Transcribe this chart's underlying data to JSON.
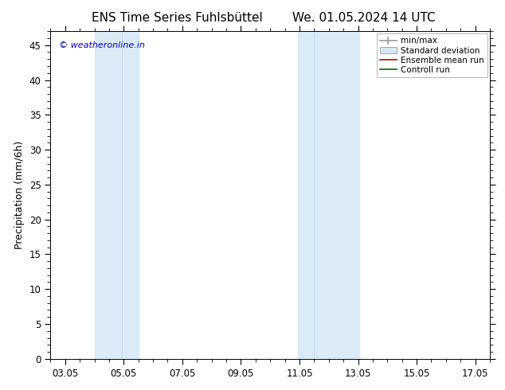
{
  "title_left": "ENS Time Series Fuhlsbüttel",
  "title_right": "We. 01.05.2024 14 UTC",
  "ylabel": "Precipitation (mm/6h)",
  "watermark": "© weatheronline.in",
  "watermark_color": "#0000cc",
  "background_color": "#ffffff",
  "plot_bg_color": "#ffffff",
  "xlim_start": 2.5,
  "xlim_end": 17.5,
  "ylim_min": 0,
  "ylim_max": 47,
  "yticks": [
    0,
    5,
    10,
    15,
    20,
    25,
    30,
    35,
    40,
    45
  ],
  "xtick_labels": [
    "03.05",
    "05.05",
    "07.05",
    "09.05",
    "11.05",
    "13.05",
    "15.05",
    "17.05"
  ],
  "xtick_positions": [
    3,
    5,
    7,
    9,
    11,
    13,
    15,
    17
  ],
  "shaded_regions": [
    {
      "x_start": 4.0,
      "x_end": 4.95,
      "color": "#daeaf7"
    },
    {
      "x_start": 4.95,
      "x_end": 5.5,
      "color": "#daeaf7"
    },
    {
      "x_start": 10.95,
      "x_end": 11.5,
      "color": "#daeaf7"
    },
    {
      "x_start": 11.5,
      "x_end": 13.05,
      "color": "#daeaf7"
    }
  ],
  "title_fontsize": 11,
  "axis_fontsize": 9,
  "tick_fontsize": 8.5,
  "legend_fontsize": 7.5,
  "watermark_fontsize": 8
}
